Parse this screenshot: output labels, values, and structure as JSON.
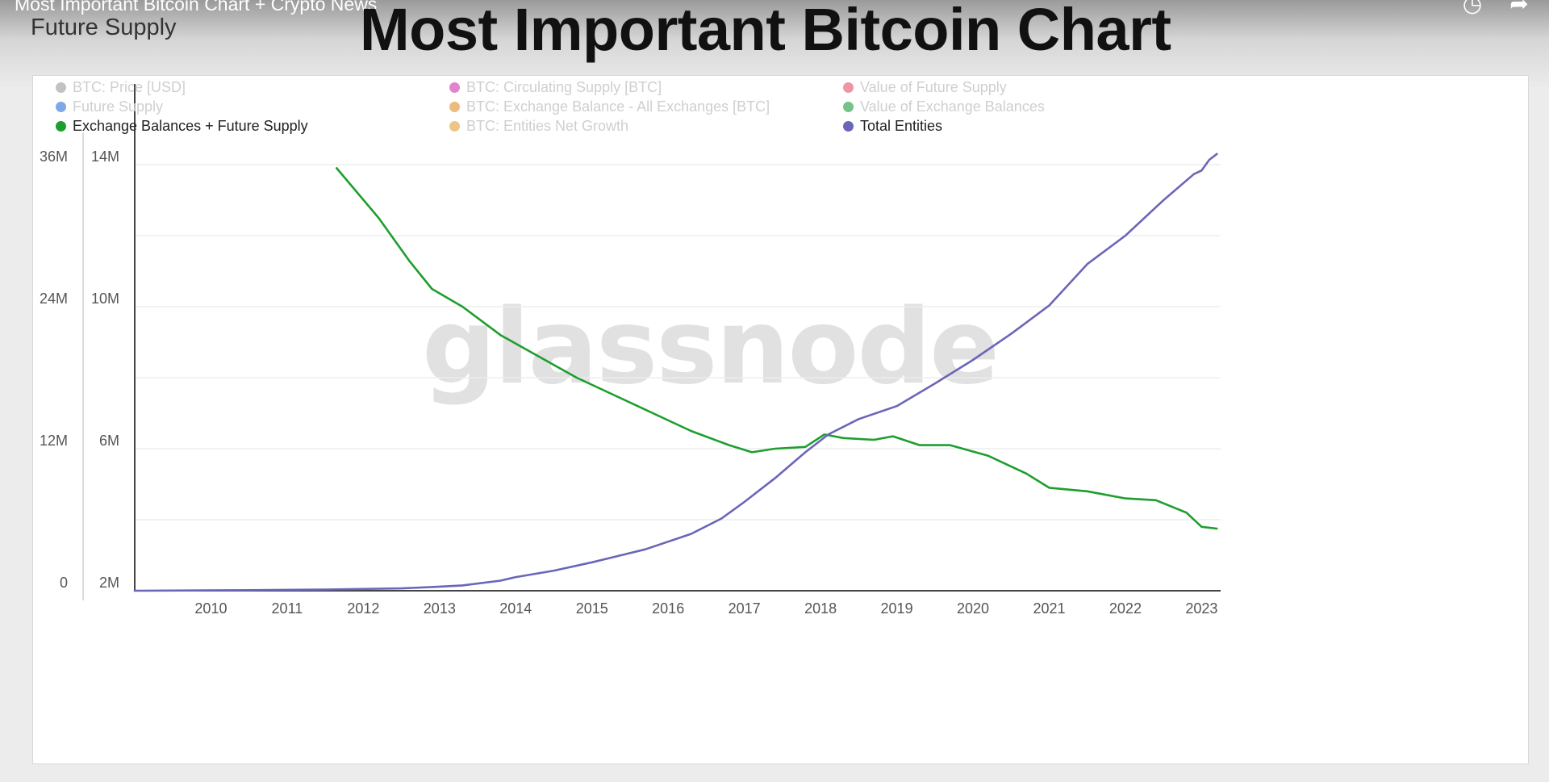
{
  "video": {
    "title": "Most Important Bitcoin Chart + Crypto News"
  },
  "header": {
    "page_label": "Future Supply",
    "headline": "Most Important Bitcoin Chart"
  },
  "icons": {
    "watch_later": "clock-icon",
    "share": "share-icon"
  },
  "chart_data": {
    "type": "line",
    "watermark": "glassnode",
    "legend": [
      {
        "name": "BTC: Price [USD]",
        "color": "#999999",
        "active": false
      },
      {
        "name": "BTC: Circulating Supply [BTC]",
        "color": "#cc33aa",
        "active": false
      },
      {
        "name": "Value of Future Supply",
        "color": "#e0506a",
        "active": false
      },
      {
        "name": "Future Supply",
        "color": "#2a6ed8",
        "active": false
      },
      {
        "name": "BTC: Exchange Balance - All Exchanges [BTC]",
        "color": "#e0902a",
        "active": false
      },
      {
        "name": "Value of Exchange Balances",
        "color": "#1a9a3a",
        "active": false
      },
      {
        "name": "Exchange Balances + Future Supply",
        "color": "#1e9e2e",
        "active": true
      },
      {
        "name": "BTC: Entities Net Growth",
        "color": "#e0a030",
        "active": false
      },
      {
        "name": "Total Entities",
        "color": "#6a66b8",
        "active": true
      }
    ],
    "x_ticks": [
      "2010",
      "2011",
      "2012",
      "2013",
      "2014",
      "2015",
      "2016",
      "2017",
      "2018",
      "2019",
      "2020",
      "2021",
      "2022",
      "2023"
    ],
    "x_range": [
      2009.0,
      2023.25
    ],
    "left_axis": {
      "ticks": [
        "36M",
        "24M",
        "12M",
        "0"
      ],
      "tick_values": [
        36000000,
        24000000,
        12000000,
        0
      ],
      "range": [
        0,
        36000000
      ]
    },
    "right_axis": {
      "ticks": [
        "14M",
        "10M",
        "6M",
        "2M"
      ],
      "tick_values": [
        14000000,
        10000000,
        6000000,
        2000000
      ],
      "range": [
        2000000,
        14000000
      ]
    },
    "grid": true,
    "series": [
      {
        "name": "Exchange Balances + Future Supply",
        "axis": "right",
        "color": "#1e9e2e",
        "x": [
          2011.65,
          2012.2,
          2012.6,
          2012.9,
          2013.3,
          2013.8,
          2014.3,
          2014.8,
          2015.3,
          2015.8,
          2016.3,
          2016.8,
          2017.1,
          2017.4,
          2017.8,
          2018.05,
          2018.3,
          2018.7,
          2018.95,
          2019.3,
          2019.7,
          2020.2,
          2020.7,
          2021.0,
          2021.5,
          2022.0,
          2022.4,
          2022.8,
          2023.0,
          2023.2
        ],
        "y": [
          13900000.0,
          12500000.0,
          11300000.0,
          10500000.0,
          10000000.0,
          9200000.0,
          8600000.0,
          8000000.0,
          7500000.0,
          7000000.0,
          6500000.0,
          6100000.0,
          5900000.0,
          6000000.0,
          6050000.0,
          6400000.0,
          6300000.0,
          6250000.0,
          6350000.0,
          6100000.0,
          6100000.0,
          5800000.0,
          5300000.0,
          4900000.0,
          4800000.0,
          4600000.0,
          4550000.0,
          4200000.0,
          3800000.0,
          3750000.0
        ]
      },
      {
        "name": "Total Entities",
        "axis": "left",
        "color": "#6a66b8",
        "x": [
          2009.0,
          2010.5,
          2011.5,
          2012.5,
          2013.0,
          2013.3,
          2013.8,
          2014.0,
          2014.5,
          2015.0,
          2015.7,
          2016.3,
          2016.7,
          2017.0,
          2017.4,
          2017.8,
          2018.1,
          2018.5,
          2019.0,
          2019.5,
          2020.0,
          2020.5,
          2021.0,
          2021.5,
          2022.0,
          2022.5,
          2022.9,
          2023.0,
          2023.1,
          2023.2
        ],
        "y": [
          0.0,
          50000.0,
          100000.0,
          200000.0,
          350000.0,
          450000.0,
          850000.0,
          1150000.0,
          1700000.0,
          2400000.0,
          3500000.0,
          4800000.0,
          6100000.0,
          7500000.0,
          9500000.0,
          11700000.0,
          13200000.0,
          14500000.0,
          15600000.0,
          17500000.0,
          19500000.0,
          21700000.0,
          24100000.0,
          27600000.0,
          30000000.0,
          33000000.0,
          35200000.0,
          35500000.0,
          36400000.0,
          36900000.0
        ]
      }
    ]
  }
}
